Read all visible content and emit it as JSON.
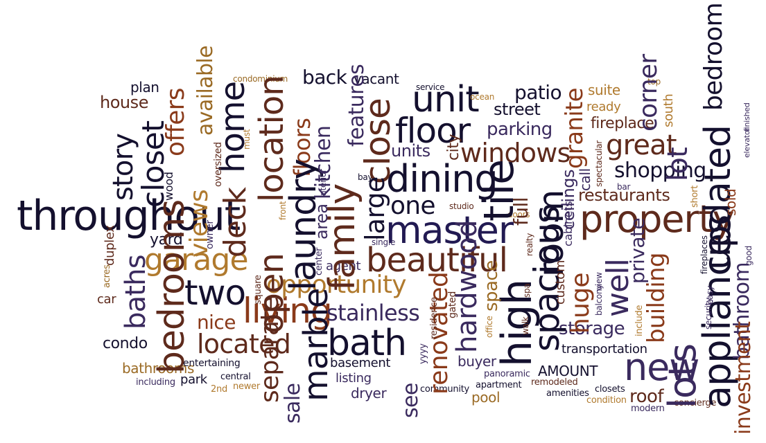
{
  "words": [
    {
      "text": "throughout",
      "color": "#14102e"
    },
    {
      "text": "master",
      "color": "#221a52"
    },
    {
      "text": "property",
      "color": "#5e2a1c"
    },
    {
      "text": "beautiful",
      "color": "#5e2a1c"
    },
    {
      "text": "dining",
      "color": "#14102e"
    },
    {
      "text": "floor",
      "color": "#14102e"
    },
    {
      "text": "unit",
      "color": "#14102e"
    },
    {
      "text": "new",
      "color": "#3a2a5e"
    },
    {
      "text": "living",
      "color": "#8a3a1a"
    },
    {
      "text": "bath",
      "color": "#14102e"
    },
    {
      "text": "two",
      "color": "#14102e"
    },
    {
      "text": "great",
      "color": "#5e2a1c"
    },
    {
      "text": "windows",
      "color": "#5e2a1c"
    },
    {
      "text": "garage",
      "color": "#b07a2e"
    },
    {
      "text": "opportunity",
      "color": "#b07a2e"
    },
    {
      "text": "located",
      "color": "#5e2a1c"
    },
    {
      "text": "one",
      "color": "#14102e"
    },
    {
      "text": "stainless",
      "color": "#3a2a5e"
    },
    {
      "text": "shopping",
      "color": "#14102e"
    },
    {
      "text": "restaurants",
      "color": "#5e2a1c"
    },
    {
      "text": "parking",
      "color": "#3a2a5e"
    },
    {
      "text": "nice",
      "color": "#8a3a1a"
    },
    {
      "text": "condo",
      "color": "#14102e"
    },
    {
      "text": "house",
      "color": "#5e2a1c"
    },
    {
      "text": "storage",
      "color": "#3a2a5e"
    },
    {
      "text": "street",
      "color": "#14102e"
    },
    {
      "text": "back",
      "color": "#14102e"
    },
    {
      "text": "patio",
      "color": "#14102e"
    },
    {
      "text": "fireplace",
      "color": "#5e2a1c"
    },
    {
      "text": "units",
      "color": "#3a2a5e"
    },
    {
      "text": "transportation",
      "color": "#14102e"
    },
    {
      "text": "bathrooms",
      "color": "#9a6a24"
    },
    {
      "text": "basement",
      "color": "#14102e"
    },
    {
      "text": "listing",
      "color": "#3a2a5e"
    },
    {
      "text": "dryer",
      "color": "#3a2a5e"
    },
    {
      "text": "AMOUNT",
      "color": "#14102e"
    },
    {
      "text": "buyer",
      "color": "#3a2a5e"
    },
    {
      "text": "pool",
      "color": "#9a6a24"
    },
    {
      "text": "roof",
      "color": "#5e2a1c"
    },
    {
      "text": "park",
      "color": "#14102e"
    },
    {
      "text": "agent",
      "color": "#3a2a5e"
    },
    {
      "text": "yard",
      "color": "#14102e"
    },
    {
      "text": "plan",
      "color": "#14102e"
    },
    {
      "text": "vacant",
      "color": "#14102e"
    },
    {
      "text": "suite",
      "color": "#b07a2e"
    },
    {
      "text": "ready",
      "color": "#b07a2e"
    },
    {
      "text": "car",
      "color": "#5e2a1c"
    },
    {
      "text": "entertaining",
      "color": "#14102e"
    },
    {
      "text": "including",
      "color": "#3a2a5e"
    },
    {
      "text": "central",
      "color": "#14102e"
    },
    {
      "text": "newer",
      "color": "#b07a2e"
    },
    {
      "text": "2nd",
      "color": "#b07a2e"
    },
    {
      "text": "community",
      "color": "#14102e"
    },
    {
      "text": "apartment",
      "color": "#14102e"
    },
    {
      "text": "panoramic",
      "color": "#3a2a5e"
    },
    {
      "text": "remodeled",
      "color": "#5e2a1c"
    },
    {
      "text": "amenities",
      "color": "#14102e"
    },
    {
      "text": "closets",
      "color": "#14102e"
    },
    {
      "text": "condition",
      "color": "#b07a2e"
    },
    {
      "text": "modern",
      "color": "#3a2a5e"
    },
    {
      "text": "concierge",
      "color": "#5e2a1c"
    },
    {
      "text": "condominium",
      "color": "#9a6a24"
    },
    {
      "text": "service",
      "color": "#14102e"
    },
    {
      "text": "ocean",
      "color": "#b07a2e"
    },
    {
      "text": "top",
      "color": "#14102e"
    },
    {
      "text": "bay",
      "color": "#9a6a24"
    },
    {
      "text": "studio",
      "color": "#14102e"
    },
    {
      "text": "doors",
      "color": "#5e2a1c"
    },
    {
      "text": "single",
      "color": "#b07a2e"
    },
    {
      "text": "bar",
      "color": "#3a2a5e"
    },
    {
      "text": "acres",
      "color": "#3a2a5e"
    },
    {
      "text": "story",
      "color": "#5e2a1c"
    },
    {
      "text": "closet",
      "color": "#14102e"
    },
    {
      "text": "offers",
      "color": "#14102e"
    },
    {
      "text": "views",
      "color": "#8a3a1a"
    },
    {
      "text": "available",
      "color": "#b07a2e"
    },
    {
      "text": "deck",
      "color": "#9a6a24"
    },
    {
      "text": "home",
      "color": "#5e2a1c"
    },
    {
      "text": "open",
      "color": "#14102e"
    },
    {
      "text": "location",
      "color": "#5e2a1c"
    },
    {
      "text": "floors",
      "color": "#5e2a1c"
    },
    {
      "text": "laundry",
      "color": "#8a3a1a"
    },
    {
      "text": "kitchen",
      "color": "#14102e"
    },
    {
      "text": "family",
      "color": "#3a2a5e"
    },
    {
      "text": "features",
      "color": "#5e2a1c"
    },
    {
      "text": "close",
      "color": "#3a2a5e"
    },
    {
      "text": "large",
      "color": "#5e2a1c"
    },
    {
      "text": "city",
      "color": "#14102e"
    },
    {
      "text": "tile",
      "color": "#5e2a1c"
    },
    {
      "text": "full",
      "color": "#14102e"
    },
    {
      "text": "high",
      "color": "#5e2a1c"
    },
    {
      "text": "spacious",
      "color": "#14102e"
    },
    {
      "text": "room",
      "color": "#14102e"
    },
    {
      "text": "granite",
      "color": "#14102e"
    },
    {
      "text": "corner",
      "color": "#8a3a1a"
    },
    {
      "text": "lot",
      "color": "#3a2a5e"
    },
    {
      "text": "updated",
      "color": "#3a2a5e"
    },
    {
      "text": "appliances",
      "color": "#14102e"
    },
    {
      "text": "bedroom",
      "color": "#14102e"
    },
    {
      "text": "lots",
      "color": "#14102e"
    },
    {
      "text": "bedrooms",
      "color": "#3a2a5e"
    },
    {
      "text": "baths",
      "color": "#5e2a1c"
    },
    {
      "text": "separate",
      "color": "#3a2a5e"
    },
    {
      "text": "sale",
      "color": "#5e2a1c"
    },
    {
      "text": "marble",
      "color": "#3a2a5e"
    },
    {
      "text": "area",
      "color": "#14102e"
    },
    {
      "text": "see",
      "color": "#3a2a5e"
    },
    {
      "text": "renovated",
      "color": "#3a2a5e"
    },
    {
      "text": "hardwood",
      "color": "#8a3a1a"
    },
    {
      "text": "space",
      "color": "#3a2a5e"
    },
    {
      "text": "well",
      "color": "#9a6a24"
    },
    {
      "text": "private",
      "color": "#3a2a5e"
    },
    {
      "text": "huge",
      "color": "#3a2a5e"
    },
    {
      "text": "building",
      "color": "#8a3a1a"
    },
    {
      "text": "bathroom",
      "color": "#8a3a1a"
    },
    {
      "text": "investment",
      "color": "#3a2a5e"
    },
    {
      "text": "ceilings",
      "color": "#8a3a1a"
    },
    {
      "text": "cabinets",
      "color": "#3a2a5e"
    },
    {
      "text": "call",
      "color": "#3a2a5e"
    },
    {
      "text": "custom",
      "color": "#3a2a5e"
    },
    {
      "text": "sold",
      "color": "#5e2a1c"
    },
    {
      "text": "south",
      "color": "#8a3a1a"
    },
    {
      "text": "duplex",
      "color": "#b07a2e"
    },
    {
      "text": "wood",
      "color": "#5e2a1c"
    },
    {
      "text": "owner",
      "color": "#14102e"
    },
    {
      "text": "oversized",
      "color": "#3a2a5e"
    },
    {
      "text": "must",
      "color": "#5e2a1c"
    },
    {
      "text": "front",
      "color": "#b07a2e"
    },
    {
      "text": "interior",
      "color": "#b07a2e"
    },
    {
      "text": "center",
      "color": "#3a2a5e"
    },
    {
      "text": "square",
      "color": "#3a2a5e"
    },
    {
      "text": "gated",
      "color": "#5e2a1c"
    },
    {
      "text": "residence",
      "color": "#5e2a1c"
    },
    {
      "text": "yyyy",
      "color": "#5e2a1c"
    },
    {
      "text": "office",
      "color": "#3a2a5e"
    },
    {
      "text": "walk",
      "color": "#b07a2e"
    },
    {
      "text": "spa",
      "color": "#5e2a1c"
    },
    {
      "text": "realty",
      "color": "#5e2a1c"
    },
    {
      "text": "balcony",
      "color": "#5e2a1c"
    },
    {
      "text": "view",
      "color": "#3a2a5e"
    },
    {
      "text": "include",
      "color": "#3a2a5e"
    },
    {
      "text": "spectacular",
      "color": "#b07a2e"
    },
    {
      "text": "fireplaces",
      "color": "#5e2a1c"
    },
    {
      "text": "security",
      "color": "#14102e"
    },
    {
      "text": "easy",
      "color": "#3a2a5e"
    },
    {
      "text": "short",
      "color": "#3a2a5e"
    },
    {
      "text": "good",
      "color": "#b07a2e"
    },
    {
      "text": "elevator",
      "color": "#3a2a5e"
    },
    {
      "text": "finished",
      "color": "#3a2a5e"
    },
    {
      "text": "loft",
      "color": "#3a2a5e"
    }
  ]
}
